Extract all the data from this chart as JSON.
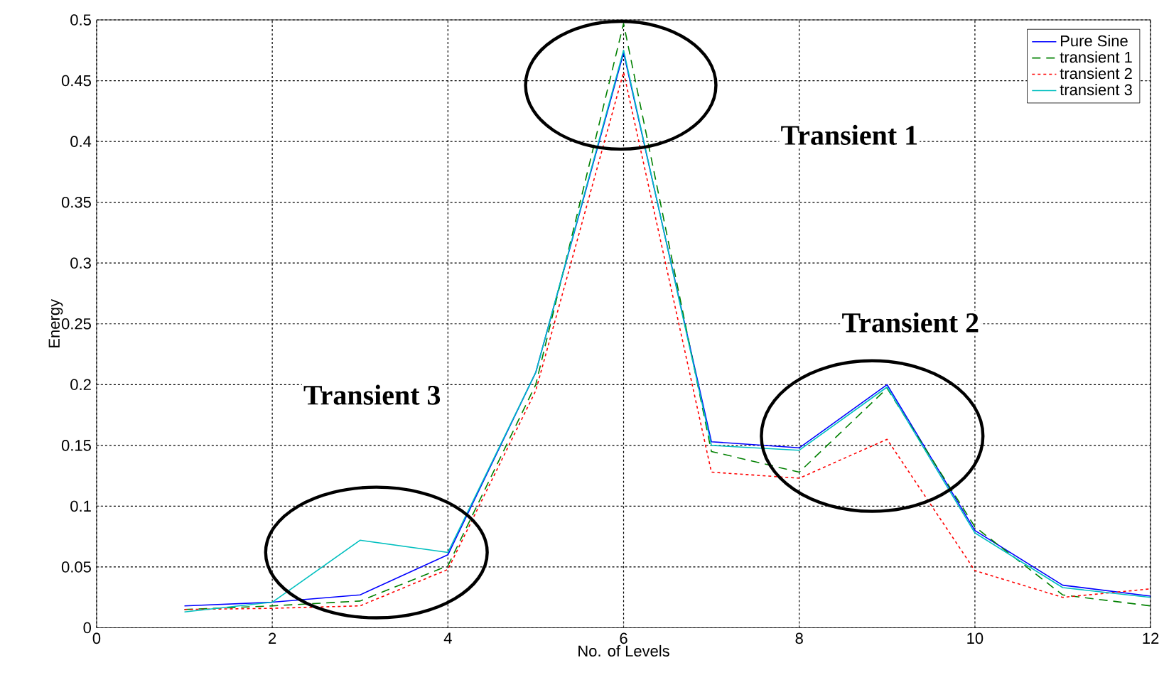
{
  "chart_data": {
    "type": "line",
    "xlabel": "No. of Levels",
    "ylabel": "Energy",
    "x": [
      1,
      2,
      3,
      4,
      5,
      6,
      7,
      8,
      9,
      10,
      11,
      12
    ],
    "series": [
      {
        "name": "Pure Sine",
        "color": "#0000ff",
        "line_style": "solid",
        "values": [
          0.018,
          0.021,
          0.027,
          0.06,
          0.21,
          0.473,
          0.153,
          0.148,
          0.2,
          0.08,
          0.035,
          0.026
        ]
      },
      {
        "name": "transient 1",
        "color": "#008000",
        "line_style": "dashed",
        "values": [
          0.015,
          0.018,
          0.022,
          0.051,
          0.2,
          0.497,
          0.145,
          0.128,
          0.197,
          0.083,
          0.027,
          0.018
        ]
      },
      {
        "name": "transient 2",
        "color": "#ff0000",
        "line_style": "dotted",
        "values": [
          0.015,
          0.016,
          0.018,
          0.048,
          0.195,
          0.457,
          0.128,
          0.123,
          0.155,
          0.047,
          0.025,
          0.032
        ]
      },
      {
        "name": "transient 3",
        "color": "#00bfbf",
        "line_style": "solid",
        "values": [
          0.013,
          0.021,
          0.072,
          0.062,
          0.21,
          0.475,
          0.15,
          0.146,
          0.198,
          0.078,
          0.033,
          0.025
        ]
      }
    ],
    "annotations": [
      "Transient 1",
      "Transient 2",
      "Transient 3"
    ],
    "xlim": [
      0,
      12
    ],
    "ylim": [
      0,
      0.5
    ],
    "xticks": [
      0,
      2,
      4,
      6,
      8,
      10,
      12
    ],
    "yticks": [
      0,
      0.05,
      0.1,
      0.15,
      0.2,
      0.25,
      0.3,
      0.35,
      0.4,
      0.45,
      0.5
    ],
    "grid": true,
    "legend": "top right"
  }
}
